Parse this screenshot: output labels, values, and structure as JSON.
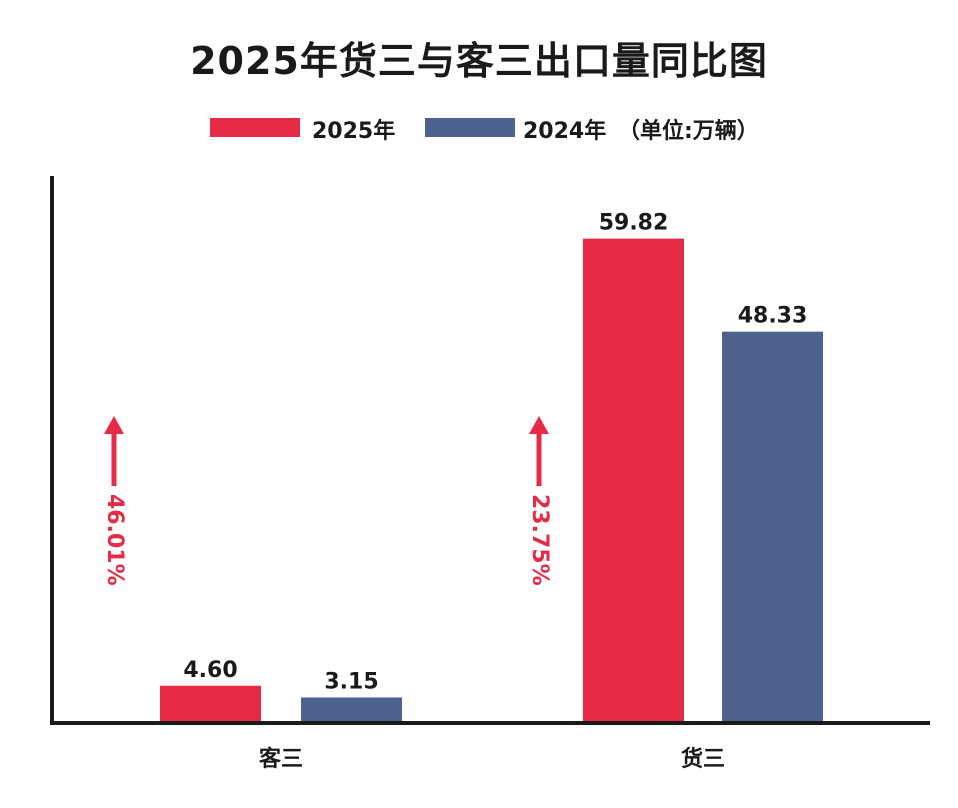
{
  "chart_data": {
    "type": "bar",
    "title": "2025年货三与客三出口量同比图",
    "unit_note": "（单位:万辆）",
    "categories": [
      "客三",
      "货三"
    ],
    "series": [
      {
        "name": "2025年",
        "color": "#e62b47",
        "values": [
          4.6,
          59.82
        ],
        "labels": [
          "4.60",
          "59.82"
        ]
      },
      {
        "name": "2024年",
        "color": "#4d628f",
        "values": [
          3.15,
          48.33
        ],
        "labels": [
          "3.15",
          "48.33"
        ]
      }
    ],
    "growth": [
      {
        "category": "客三",
        "label": "46.01%",
        "color": "#e62b47"
      },
      {
        "category": "货三",
        "label": "23.75%",
        "color": "#e62b47"
      }
    ],
    "ylim": [
      0,
      72
    ],
    "axis_color": "#1a1a1a",
    "grid": false,
    "legend_position": "top-center"
  }
}
